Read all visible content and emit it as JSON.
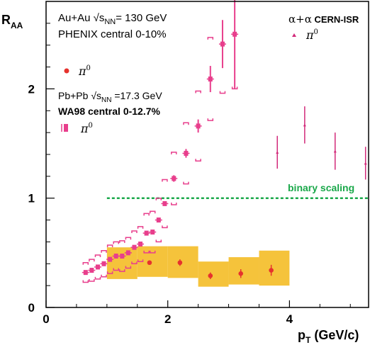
{
  "chart_data": {
    "type": "scatter",
    "xlabel_main": "p",
    "xlabel_sub": "T",
    "xlabel_unit": " (GeV/c)",
    "ylabel_main": "R",
    "ylabel_sub": "AA",
    "xlim": [
      0,
      5.3
    ],
    "ylim": [
      0,
      2.8
    ],
    "x_ticks": [
      {
        "v": 0,
        "label": "0"
      },
      {
        "v": 2,
        "label": "2"
      },
      {
        "v": 4,
        "label": "4"
      }
    ],
    "y_ticks": [
      {
        "v": 0,
        "label": "0"
      },
      {
        "v": 1,
        "label": "1"
      },
      {
        "v": 2,
        "label": "2"
      }
    ],
    "colors": {
      "phenix": "#e6322d",
      "wa98": "#e83e8c",
      "isr": "#d22a7a",
      "band": "#f5c33b",
      "binary": "#1aa84a"
    },
    "reference_line": {
      "y": 1.0,
      "x_start": 1.0,
      "x_end": 5.3,
      "label": "binary scaling"
    },
    "legend": {
      "phenix_line1_a": "Au+Au √s",
      "phenix_line1_sub": "NN",
      "phenix_line1_b": "= 130 GeV",
      "phenix_line2": "PHENIX central 0-10%",
      "phenix_symbol": "π",
      "wa98_line1_a": "Pb+Pb √s",
      "wa98_line1_sub": "NN",
      "wa98_line1_b": " =17.3 GeV",
      "wa98_line2": "WA98 central 0-12.7%",
      "wa98_symbol": "π",
      "isr_title_a": "α+α",
      "isr_title_b": " CERN-ISR",
      "isr_symbol": "π",
      "superscript_zero": "0"
    },
    "series": [
      {
        "name": "PHENIX Au+Au π0",
        "points": [
          {
            "x": 1.7,
            "y": 0.41,
            "err": 0.02
          },
          {
            "x": 2.2,
            "y": 0.41,
            "err": 0.03
          },
          {
            "x": 2.7,
            "y": 0.29,
            "err": 0.03
          },
          {
            "x": 3.2,
            "y": 0.31,
            "err": 0.04
          },
          {
            "x": 3.7,
            "y": 0.34,
            "err": 0.05
          }
        ],
        "syst_bands": [
          {
            "x0": 1.0,
            "x1": 1.5,
            "y0": 0.26,
            "y1": 0.55
          },
          {
            "x0": 1.5,
            "x1": 2.0,
            "y0": 0.28,
            "y1": 0.56
          },
          {
            "x0": 2.0,
            "x1": 2.5,
            "y0": 0.27,
            "y1": 0.56
          },
          {
            "x0": 2.5,
            "x1": 3.0,
            "y0": 0.19,
            "y1": 0.42
          },
          {
            "x0": 3.0,
            "x1": 3.5,
            "y0": 0.21,
            "y1": 0.46
          },
          {
            "x0": 3.5,
            "x1": 4.0,
            "y0": 0.2,
            "y1": 0.52
          }
        ]
      },
      {
        "name": "WA98 Pb+Pb π0",
        "points": [
          {
            "x": 0.65,
            "y": 0.32,
            "yerr": 0.015,
            "syst": 0.09
          },
          {
            "x": 0.75,
            "y": 0.34,
            "yerr": 0.015,
            "syst": 0.1
          },
          {
            "x": 0.85,
            "y": 0.37,
            "yerr": 0.015,
            "syst": 0.11
          },
          {
            "x": 0.95,
            "y": 0.4,
            "yerr": 0.015,
            "syst": 0.12
          },
          {
            "x": 1.05,
            "y": 0.44,
            "yerr": 0.015,
            "syst": 0.13
          },
          {
            "x": 1.15,
            "y": 0.47,
            "yerr": 0.015,
            "syst": 0.13
          },
          {
            "x": 1.25,
            "y": 0.47,
            "yerr": 0.015,
            "syst": 0.14
          },
          {
            "x": 1.35,
            "y": 0.5,
            "yerr": 0.015,
            "syst": 0.14
          },
          {
            "x": 1.45,
            "y": 0.55,
            "yerr": 0.015,
            "syst": 0.15
          },
          {
            "x": 1.55,
            "y": 0.58,
            "yerr": 0.015,
            "syst": 0.16
          },
          {
            "x": 1.65,
            "y": 0.68,
            "yerr": 0.015,
            "syst": 0.18
          },
          {
            "x": 1.75,
            "y": 0.69,
            "yerr": 0.015,
            "syst": 0.19
          },
          {
            "x": 1.85,
            "y": 0.8,
            "yerr": 0.02,
            "syst": 0.2
          },
          {
            "x": 1.95,
            "y": 0.95,
            "yerr": 0.02,
            "syst": 0.22
          },
          {
            "x": 2.1,
            "y": 1.18,
            "yerr": 0.03,
            "syst": 0.24
          },
          {
            "x": 2.3,
            "y": 1.41,
            "yerr": 0.04,
            "syst": 0.28
          },
          {
            "x": 2.5,
            "y": 1.66,
            "yerr": 0.06,
            "syst": 0.32
          },
          {
            "x": 2.7,
            "y": 2.09,
            "yerr": 0.12,
            "syst": 0.38
          },
          {
            "x": 2.9,
            "y": 2.41,
            "yerr": 0.22,
            "syst": 0.45
          },
          {
            "x": 3.1,
            "y": 2.5,
            "yerr": 0.5,
            "syst": 0.5
          }
        ]
      },
      {
        "name": "CERN-ISR α+α π0",
        "points": [
          {
            "x": 3.8,
            "y": 1.42,
            "err": 0.15
          },
          {
            "x": 4.25,
            "y": 1.67,
            "err": 0.17
          },
          {
            "x": 4.75,
            "y": 1.43,
            "err": 0.17
          },
          {
            "x": 5.25,
            "y": 1.32,
            "err": 0.15
          }
        ]
      }
    ]
  }
}
